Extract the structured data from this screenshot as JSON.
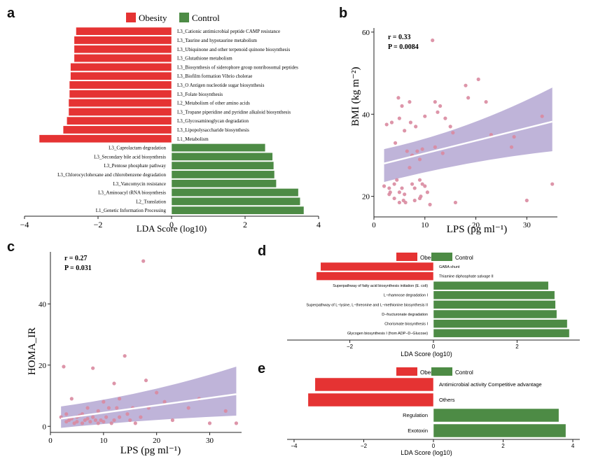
{
  "colors": {
    "obesity": "#e53333",
    "control": "#4d8b45",
    "point": "#d98aa0",
    "band": "#a99bcc",
    "line": "#ffffff",
    "plot_bg": "#ffffff"
  },
  "panel_a": {
    "label": "a",
    "legend": [
      "Obesity",
      "Control"
    ],
    "xlabel": "LDA Score (log10)",
    "xticks": [
      "−4",
      "−2",
      "0",
      "2",
      "4"
    ],
    "chart_data": {
      "type": "bar",
      "xlabel": "LDA Score (log10)",
      "xlim": [
        -4,
        4
      ],
      "bars": [
        {
          "label": "L3_Cationic antimicrobial peptide CAMP resistance",
          "value": -2.6,
          "group": "Obesity"
        },
        {
          "label": "L3_Taurine and hypotaurine metabolism",
          "value": -2.65,
          "group": "Obesity"
        },
        {
          "label": "L3_Ubiquinone and other terpenoid quinone biosynthesis",
          "value": -2.65,
          "group": "Obesity"
        },
        {
          "label": "L3_Glutathione metabolism",
          "value": -2.65,
          "group": "Obesity"
        },
        {
          "label": "L3_Biosynthesis of siderophore group nonribosomal peptides",
          "value": -2.75,
          "group": "Obesity"
        },
        {
          "label": "L3_Biofilm formation Vibrio cholerae",
          "value": -2.75,
          "group": "Obesity"
        },
        {
          "label": "L3_O Antigen nucleotide sugar biosynthesis",
          "value": -2.78,
          "group": "Obesity"
        },
        {
          "label": "L3_Folate biosynthesis",
          "value": -2.78,
          "group": "Obesity"
        },
        {
          "label": "L2_Metabolism of other amino acids",
          "value": -2.8,
          "group": "Obesity"
        },
        {
          "label": "L3_Tropane piperidine and pyridine alkaloid biosynthesis",
          "value": -2.8,
          "group": "Obesity"
        },
        {
          "label": "L3_Glycosaminoglycan degradation",
          "value": -2.85,
          "group": "Obesity"
        },
        {
          "label": "L3_Lipopolysaccharide biosynthesis",
          "value": -2.95,
          "group": "Obesity"
        },
        {
          "label": "L1_Metabolism",
          "value": -3.6,
          "group": "Obesity"
        },
        {
          "label": "L3_Caprolactam degradation",
          "value": 2.55,
          "group": "Control"
        },
        {
          "label": "L3_Secondary bile acid biosynthesis",
          "value": 2.75,
          "group": "Control"
        },
        {
          "label": "L3_Pentose phosphate pathway",
          "value": 2.78,
          "group": "Control"
        },
        {
          "label": "L3_Chlorocyclohexane and chlorobenzene degradation",
          "value": 2.8,
          "group": "Control"
        },
        {
          "label": "L3_Vancomycin resistance",
          "value": 2.85,
          "group": "Control"
        },
        {
          "label": "L3_Aminoacyl tRNA biosynthesis",
          "value": 3.45,
          "group": "Control"
        },
        {
          "label": "L2_Translation",
          "value": 3.5,
          "group": "Control"
        },
        {
          "label": "L1_Genetic Information Processing",
          "value": 3.6,
          "group": "Control"
        }
      ]
    }
  },
  "panel_b": {
    "label": "b",
    "stat_r": "r = 0.33",
    "stat_p": "P = 0.0084",
    "xlabel": "LPS (pg ml⁻¹)",
    "ylabel": "BMI (kg m⁻²)",
    "xticks": [
      "0",
      "10",
      "20",
      "30"
    ],
    "yticks": [
      "20",
      "40",
      "60"
    ],
    "chart_data": {
      "type": "scatter",
      "xlabel": "LPS (pg ml⁻¹)",
      "ylabel": "BMI (kg m⁻²)",
      "xlim": [
        0,
        36
      ],
      "ylim": [
        15,
        61
      ],
      "fit": {
        "x": [
          2,
          35
        ],
        "y": [
          28.0,
          38.2
        ],
        "band_lo": [
          23.5,
          31.0
        ],
        "band_hi": [
          31.5,
          46.5
        ]
      },
      "points": [
        [
          2,
          22.5
        ],
        [
          2.5,
          37.5
        ],
        [
          3,
          20.5
        ],
        [
          3,
          22
        ],
        [
          3.2,
          21
        ],
        [
          3.5,
          38
        ],
        [
          4,
          19.5
        ],
        [
          4,
          23
        ],
        [
          4.2,
          33
        ],
        [
          4.5,
          24
        ],
        [
          4.8,
          44
        ],
        [
          5,
          18.5
        ],
        [
          5,
          21
        ],
        [
          5,
          39
        ],
        [
          5.5,
          42
        ],
        [
          5.5,
          22
        ],
        [
          5.8,
          19
        ],
        [
          6,
          36
        ],
        [
          6,
          20.5
        ],
        [
          6.2,
          18.5
        ],
        [
          6.5,
          31
        ],
        [
          7,
          27
        ],
        [
          7,
          43
        ],
        [
          7.2,
          38
        ],
        [
          7.5,
          30
        ],
        [
          7.5,
          23
        ],
        [
          8,
          22
        ],
        [
          8,
          19
        ],
        [
          8.2,
          37
        ],
        [
          8.5,
          31
        ],
        [
          9,
          24
        ],
        [
          9,
          29
        ],
        [
          9,
          19.5
        ],
        [
          9.2,
          20
        ],
        [
          9.5,
          31.5
        ],
        [
          9.5,
          23
        ],
        [
          10,
          22.5
        ],
        [
          10,
          39.5
        ],
        [
          10.5,
          21
        ],
        [
          11,
          18
        ],
        [
          11.5,
          58
        ],
        [
          12,
          43
        ],
        [
          12,
          32
        ],
        [
          12.5,
          40.5
        ],
        [
          13,
          42
        ],
        [
          13.5,
          30.5
        ],
        [
          14,
          39
        ],
        [
          15,
          37
        ],
        [
          15.5,
          35.5
        ],
        [
          16,
          18.5
        ],
        [
          18,
          47
        ],
        [
          18.5,
          44
        ],
        [
          20.5,
          48.5
        ],
        [
          22,
          43
        ],
        [
          23,
          35
        ],
        [
          27,
          32
        ],
        [
          27.5,
          34.5
        ],
        [
          30,
          19
        ],
        [
          33,
          39.5
        ],
        [
          35,
          23
        ]
      ]
    }
  },
  "panel_c": {
    "label": "c",
    "stat_r": "r = 0.27",
    "stat_p": "P = 0.031",
    "xlabel": "LPS (pg ml⁻¹)",
    "ylabel": "HOMA_IR",
    "xticks": [
      "0",
      "10",
      "20",
      "30"
    ],
    "yticks": [
      "0",
      "20",
      "40"
    ],
    "chart_data": {
      "type": "scatter",
      "xlabel": "LPS (pg ml⁻¹)",
      "ylabel": "HOMA_IR",
      "xlim": [
        0,
        36
      ],
      "ylim": [
        -2,
        57
      ],
      "fit": {
        "x": [
          2,
          35
        ],
        "y": [
          2.5,
          10.5
        ],
        "band_lo": [
          -0.5,
          3.5
        ],
        "band_hi": [
          6.5,
          19.5
        ]
      },
      "points": [
        [
          2,
          3
        ],
        [
          2.5,
          19.5
        ],
        [
          3,
          1.5
        ],
        [
          3,
          4
        ],
        [
          3.5,
          2
        ],
        [
          4,
          2.5
        ],
        [
          4,
          9
        ],
        [
          4.5,
          1
        ],
        [
          5,
          3
        ],
        [
          5,
          1.5
        ],
        [
          5.5,
          3.5
        ],
        [
          6,
          1
        ],
        [
          6,
          4
        ],
        [
          6.5,
          2
        ],
        [
          7,
          2.5
        ],
        [
          7,
          6
        ],
        [
          7.5,
          1.5
        ],
        [
          8,
          3
        ],
        [
          8,
          19
        ],
        [
          8.5,
          2
        ],
        [
          9,
          1
        ],
        [
          9,
          5
        ],
        [
          9.5,
          2
        ],
        [
          10,
          1.5
        ],
        [
          10,
          8
        ],
        [
          10.5,
          3
        ],
        [
          11,
          6
        ],
        [
          11.5,
          1
        ],
        [
          12,
          2
        ],
        [
          12,
          14
        ],
        [
          12.5,
          6
        ],
        [
          13,
          3
        ],
        [
          13,
          9
        ],
        [
          14,
          23
        ],
        [
          14.5,
          4
        ],
        [
          15,
          2
        ],
        [
          15.5,
          6
        ],
        [
          16,
          1
        ],
        [
          17,
          3
        ],
        [
          17.5,
          54
        ],
        [
          18,
          15
        ],
        [
          18.5,
          6
        ],
        [
          20,
          11
        ],
        [
          21.5,
          8
        ],
        [
          23,
          2
        ],
        [
          26,
          6
        ],
        [
          28,
          9
        ],
        [
          30,
          1
        ],
        [
          33,
          5
        ],
        [
          35,
          1
        ]
      ]
    }
  },
  "panel_d": {
    "label": "d",
    "legend": [
      "Obesity",
      "Control"
    ],
    "xlabel": "LDA Score (log10)",
    "xticks": [
      "−2",
      "0",
      "2"
    ],
    "chart_data": {
      "type": "bar",
      "xlabel": "LDA Score (log10)",
      "xlim": [
        -3.5,
        3.5
      ],
      "bars": [
        {
          "label": "GABA shunt",
          "value": -2.7,
          "group": "Obesity"
        },
        {
          "label": "Thiamine diphosphate salvage II",
          "value": -2.8,
          "group": "Obesity"
        },
        {
          "label": "Superpathway of fatty acid biosynthesis initiation (E. coli)",
          "value": 2.75,
          "group": "Control"
        },
        {
          "label": "L−rhamnose degradation I",
          "value": 2.9,
          "group": "Control"
        },
        {
          "label": "Superpathway of L−lysine, L−threonine and L−methionine biosynthesis II",
          "value": 2.92,
          "group": "Control"
        },
        {
          "label": "D−fructuronate degradation",
          "value": 2.95,
          "group": "Control"
        },
        {
          "label": "Chorismate biosynthesis I",
          "value": 3.2,
          "group": "Control"
        },
        {
          "label": "Glycogen biosynthesis I (from ADP−D−Glucose)",
          "value": 3.25,
          "group": "Control"
        }
      ]
    }
  },
  "panel_e": {
    "label": "e",
    "legend": [
      "Obesity",
      "Control"
    ],
    "xlabel": "LDA Score (log10)",
    "xticks": [
      "−4",
      "−2",
      "0",
      "2",
      "4"
    ],
    "chart_data": {
      "type": "bar",
      "xlabel": "LDA Score (log10)",
      "xlim": [
        -4.2,
        4.2
      ],
      "bars": [
        {
          "label": "Antimicrobial activity Competitive advantage",
          "value": -3.4,
          "group": "Obesity"
        },
        {
          "label": "Others",
          "value": -3.6,
          "group": "Obesity"
        },
        {
          "label": "Regulation",
          "value": 3.6,
          "group": "Control"
        },
        {
          "label": "Exotoxin",
          "value": 3.8,
          "group": "Control"
        }
      ]
    }
  }
}
